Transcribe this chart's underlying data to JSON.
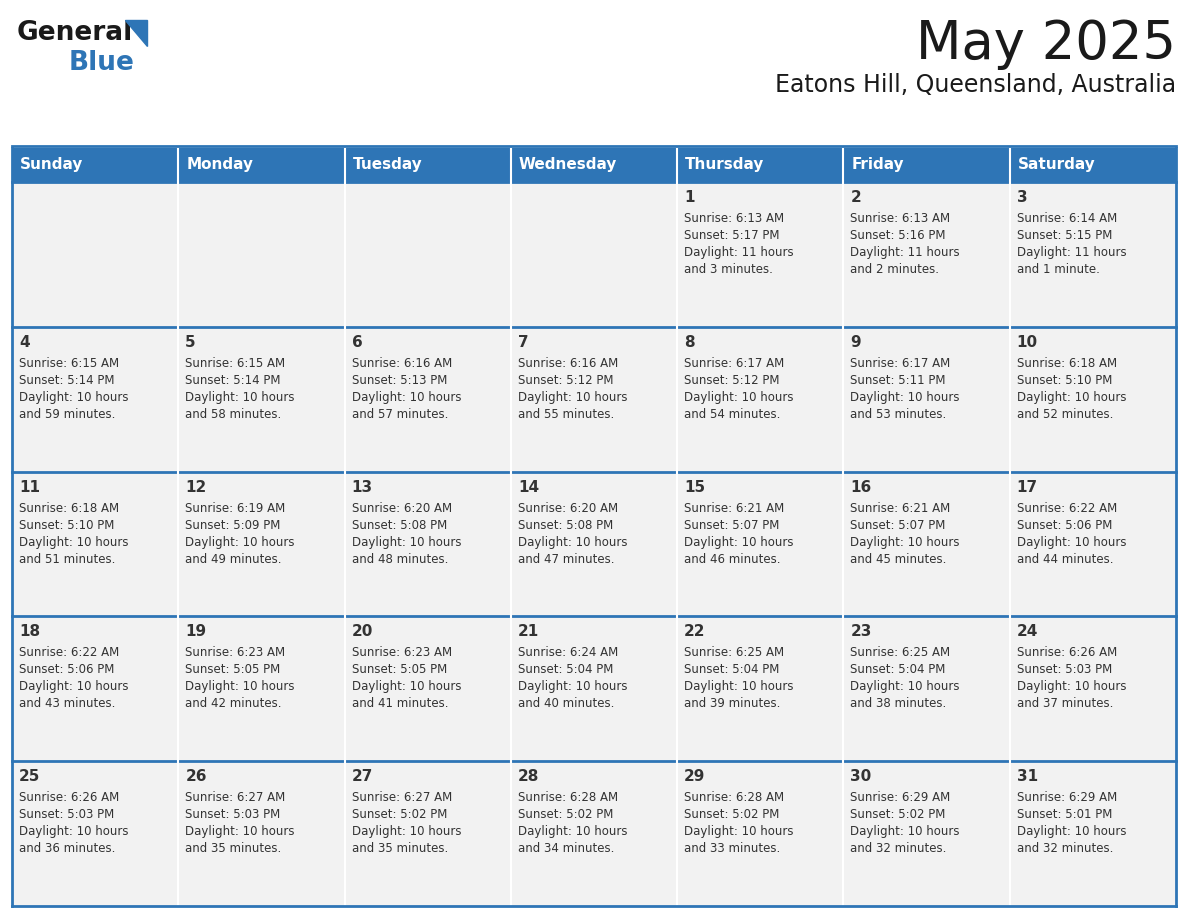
{
  "title": "May 2025",
  "subtitle": "Eatons Hill, Queensland, Australia",
  "header_bg": "#2E75B6",
  "header_text_color": "#FFFFFF",
  "cell_bg": "#F2F2F2",
  "row_line_color": "#2E75B6",
  "text_color": "#333333",
  "days_of_week": [
    "Sunday",
    "Monday",
    "Tuesday",
    "Wednesday",
    "Thursday",
    "Friday",
    "Saturday"
  ],
  "calendar": [
    [
      {
        "day": "",
        "sunrise": "",
        "sunset": "",
        "daylight": ""
      },
      {
        "day": "",
        "sunrise": "",
        "sunset": "",
        "daylight": ""
      },
      {
        "day": "",
        "sunrise": "",
        "sunset": "",
        "daylight": ""
      },
      {
        "day": "",
        "sunrise": "",
        "sunset": "",
        "daylight": ""
      },
      {
        "day": "1",
        "sunrise": "6:13 AM",
        "sunset": "5:17 PM",
        "daylight": "11 hours and 3 minutes."
      },
      {
        "day": "2",
        "sunrise": "6:13 AM",
        "sunset": "5:16 PM",
        "daylight": "11 hours and 2 minutes."
      },
      {
        "day": "3",
        "sunrise": "6:14 AM",
        "sunset": "5:15 PM",
        "daylight": "11 hours and 1 minute."
      }
    ],
    [
      {
        "day": "4",
        "sunrise": "6:15 AM",
        "sunset": "5:14 PM",
        "daylight": "10 hours and 59 minutes."
      },
      {
        "day": "5",
        "sunrise": "6:15 AM",
        "sunset": "5:14 PM",
        "daylight": "10 hours and 58 minutes."
      },
      {
        "day": "6",
        "sunrise": "6:16 AM",
        "sunset": "5:13 PM",
        "daylight": "10 hours and 57 minutes."
      },
      {
        "day": "7",
        "sunrise": "6:16 AM",
        "sunset": "5:12 PM",
        "daylight": "10 hours and 55 minutes."
      },
      {
        "day": "8",
        "sunrise": "6:17 AM",
        "sunset": "5:12 PM",
        "daylight": "10 hours and 54 minutes."
      },
      {
        "day": "9",
        "sunrise": "6:17 AM",
        "sunset": "5:11 PM",
        "daylight": "10 hours and 53 minutes."
      },
      {
        "day": "10",
        "sunrise": "6:18 AM",
        "sunset": "5:10 PM",
        "daylight": "10 hours and 52 minutes."
      }
    ],
    [
      {
        "day": "11",
        "sunrise": "6:18 AM",
        "sunset": "5:10 PM",
        "daylight": "10 hours and 51 minutes."
      },
      {
        "day": "12",
        "sunrise": "6:19 AM",
        "sunset": "5:09 PM",
        "daylight": "10 hours and 49 minutes."
      },
      {
        "day": "13",
        "sunrise": "6:20 AM",
        "sunset": "5:08 PM",
        "daylight": "10 hours and 48 minutes."
      },
      {
        "day": "14",
        "sunrise": "6:20 AM",
        "sunset": "5:08 PM",
        "daylight": "10 hours and 47 minutes."
      },
      {
        "day": "15",
        "sunrise": "6:21 AM",
        "sunset": "5:07 PM",
        "daylight": "10 hours and 46 minutes."
      },
      {
        "day": "16",
        "sunrise": "6:21 AM",
        "sunset": "5:07 PM",
        "daylight": "10 hours and 45 minutes."
      },
      {
        "day": "17",
        "sunrise": "6:22 AM",
        "sunset": "5:06 PM",
        "daylight": "10 hours and 44 minutes."
      }
    ],
    [
      {
        "day": "18",
        "sunrise": "6:22 AM",
        "sunset": "5:06 PM",
        "daylight": "10 hours and 43 minutes."
      },
      {
        "day": "19",
        "sunrise": "6:23 AM",
        "sunset": "5:05 PM",
        "daylight": "10 hours and 42 minutes."
      },
      {
        "day": "20",
        "sunrise": "6:23 AM",
        "sunset": "5:05 PM",
        "daylight": "10 hours and 41 minutes."
      },
      {
        "day": "21",
        "sunrise": "6:24 AM",
        "sunset": "5:04 PM",
        "daylight": "10 hours and 40 minutes."
      },
      {
        "day": "22",
        "sunrise": "6:25 AM",
        "sunset": "5:04 PM",
        "daylight": "10 hours and 39 minutes."
      },
      {
        "day": "23",
        "sunrise": "6:25 AM",
        "sunset": "5:04 PM",
        "daylight": "10 hours and 38 minutes."
      },
      {
        "day": "24",
        "sunrise": "6:26 AM",
        "sunset": "5:03 PM",
        "daylight": "10 hours and 37 minutes."
      }
    ],
    [
      {
        "day": "25",
        "sunrise": "6:26 AM",
        "sunset": "5:03 PM",
        "daylight": "10 hours and 36 minutes."
      },
      {
        "day": "26",
        "sunrise": "6:27 AM",
        "sunset": "5:03 PM",
        "daylight": "10 hours and 35 minutes."
      },
      {
        "day": "27",
        "sunrise": "6:27 AM",
        "sunset": "5:02 PM",
        "daylight": "10 hours and 35 minutes."
      },
      {
        "day": "28",
        "sunrise": "6:28 AM",
        "sunset": "5:02 PM",
        "daylight": "10 hours and 34 minutes."
      },
      {
        "day": "29",
        "sunrise": "6:28 AM",
        "sunset": "5:02 PM",
        "daylight": "10 hours and 33 minutes."
      },
      {
        "day": "30",
        "sunrise": "6:29 AM",
        "sunset": "5:02 PM",
        "daylight": "10 hours and 32 minutes."
      },
      {
        "day": "31",
        "sunrise": "6:29 AM",
        "sunset": "5:01 PM",
        "daylight": "10 hours and 32 minutes."
      }
    ]
  ],
  "logo_color_general": "#1a1a1a",
  "logo_color_blue": "#2E75B6",
  "logo_triangle_color": "#2E75B6",
  "title_fontsize": 38,
  "subtitle_fontsize": 17,
  "dow_fontsize": 11,
  "day_num_fontsize": 11,
  "cell_text_fontsize": 8.5
}
